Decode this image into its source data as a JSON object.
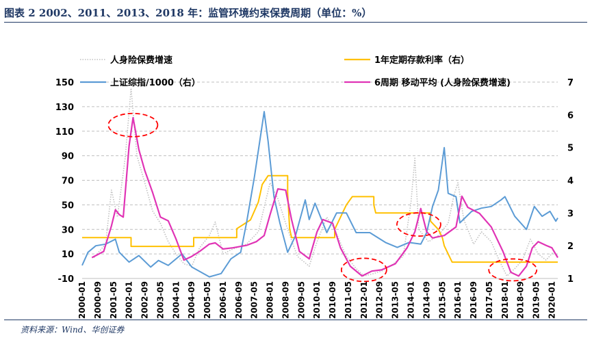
{
  "header": {
    "title": "图表 2   2002、2011、2013、2018 年：监管环境约束保费周期（单位：%）"
  },
  "footer": {
    "source": "资料来源：Wind、华创证券"
  },
  "chart_data": {
    "type": "line",
    "title": "",
    "xlabel": "",
    "ylabel": "",
    "ylim_left": [
      -10,
      150
    ],
    "yticks_left": [
      -10,
      10,
      30,
      50,
      70,
      90,
      110,
      130,
      150
    ],
    "ylim_right": [
      1,
      7
    ],
    "yticks_right": [
      1,
      2,
      3,
      4,
      5,
      6,
      7
    ],
    "x_range": [
      "2000-01",
      "2020-04"
    ],
    "x_tick_labels": [
      "2000-01",
      "2000-09",
      "2001-05",
      "2002-01",
      "2002-09",
      "2003-05",
      "2004-01",
      "2004-09",
      "2005-05",
      "2006-01",
      "2006-09",
      "2007-05",
      "2008-01",
      "2008-09",
      "2009-05",
      "2010-01",
      "2010-09",
      "2011-05",
      "2012-01",
      "2012-09",
      "2013-05",
      "2014-01",
      "2014-09",
      "2015-05",
      "2016-01",
      "2016-09",
      "2017-05",
      "2018-01",
      "2018-09",
      "2019-05",
      "2020-01"
    ],
    "grid": "horizontal-dashed",
    "legend_position": "top",
    "highlight_circles": [
      {
        "center": [
          "2002-03",
          115
        ],
        "series_ref": "spike 2002"
      },
      {
        "center": [
          "2012-01",
          -3
        ],
        "series_ref": "trough 2011-2012"
      },
      {
        "center": [
          "2014-05",
          34
        ],
        "series_ref": "peak 2014"
      },
      {
        "center": [
          "2018-05",
          -3
        ],
        "series_ref": "trough 2018"
      }
    ],
    "series": [
      {
        "name": "人身险保费增速",
        "axis": "left",
        "color": "#c0c0c0",
        "style": "dotted",
        "points": [
          [
            "2000-07",
            7
          ],
          [
            "2001-01",
            18
          ],
          [
            "2001-04",
            62
          ],
          [
            "2001-07",
            40
          ],
          [
            "2001-11",
            88
          ],
          [
            "2002-02",
            145
          ],
          [
            "2002-05",
            90
          ],
          [
            "2002-09",
            68
          ],
          [
            "2003-01",
            45
          ],
          [
            "2003-05",
            35
          ],
          [
            "2003-09",
            20
          ],
          [
            "2004-01",
            10
          ],
          [
            "2004-05",
            2
          ],
          [
            "2004-09",
            0
          ],
          [
            "2005-01",
            15
          ],
          [
            "2005-06",
            25
          ],
          [
            "2005-09",
            36
          ],
          [
            "2006-01",
            10
          ],
          [
            "2006-06",
            14
          ],
          [
            "2007-01",
            18
          ],
          [
            "2007-07",
            28
          ],
          [
            "2008-01",
            68
          ],
          [
            "2008-05",
            55
          ],
          [
            "2008-10",
            30
          ],
          [
            "2009-03",
            8
          ],
          [
            "2009-09",
            0
          ],
          [
            "2010-01",
            20
          ],
          [
            "2010-06",
            40
          ],
          [
            "2010-10",
            30
          ],
          [
            "2011-04",
            8
          ],
          [
            "2011-09",
            -2
          ],
          [
            "2012-01",
            -8
          ],
          [
            "2012-06",
            -6
          ],
          [
            "2012-10",
            -4
          ],
          [
            "2013-04",
            2
          ],
          [
            "2013-09",
            8
          ],
          [
            "2014-01",
            52
          ],
          [
            "2014-03",
            88
          ],
          [
            "2014-05",
            30
          ],
          [
            "2014-10",
            20
          ],
          [
            "2015-03",
            25
          ],
          [
            "2015-08",
            35
          ],
          [
            "2015-11",
            58
          ],
          [
            "2016-01",
            68
          ],
          [
            "2016-04",
            38
          ],
          [
            "2016-09",
            18
          ],
          [
            "2017-01",
            28
          ],
          [
            "2017-06",
            20
          ],
          [
            "2017-10",
            5
          ],
          [
            "2018-02",
            -8
          ],
          [
            "2018-06",
            -2
          ],
          [
            "2018-10",
            5
          ],
          [
            "2019-02",
            22
          ],
          [
            "2019-06",
            10
          ],
          [
            "2019-10",
            5
          ],
          [
            "2020-02",
            12
          ],
          [
            "2020-04",
            8
          ]
        ]
      },
      {
        "name": "1年定期存款利率（右）",
        "axis": "right",
        "color": "#ffc000",
        "style": "solid",
        "points": [
          [
            "2000-01",
            2.25
          ],
          [
            "2002-02",
            2.25
          ],
          [
            "2002-02",
            1.98
          ],
          [
            "2004-10",
            1.98
          ],
          [
            "2004-10",
            2.25
          ],
          [
            "2006-08",
            2.25
          ],
          [
            "2006-08",
            2.52
          ],
          [
            "2007-03",
            2.79
          ],
          [
            "2007-05",
            3.06
          ],
          [
            "2007-07",
            3.33
          ],
          [
            "2007-08",
            3.6
          ],
          [
            "2007-09",
            3.87
          ],
          [
            "2007-12",
            4.14
          ],
          [
            "2008-10",
            4.14
          ],
          [
            "2008-10",
            3.6
          ],
          [
            "2008-11",
            2.52
          ],
          [
            "2008-12",
            2.25
          ],
          [
            "2010-10",
            2.25
          ],
          [
            "2010-10",
            2.5
          ],
          [
            "2010-12",
            2.75
          ],
          [
            "2011-02",
            3.0
          ],
          [
            "2011-04",
            3.25
          ],
          [
            "2011-07",
            3.5
          ],
          [
            "2012-06",
            3.5
          ],
          [
            "2012-06",
            3.25
          ],
          [
            "2012-07",
            3.0
          ],
          [
            "2014-11",
            3.0
          ],
          [
            "2014-11",
            2.75
          ],
          [
            "2015-03",
            2.5
          ],
          [
            "2015-05",
            2.25
          ],
          [
            "2015-06",
            2.0
          ],
          [
            "2015-08",
            1.75
          ],
          [
            "2015-10",
            1.5
          ],
          [
            "2020-04",
            1.5
          ]
        ]
      },
      {
        "name": "上证综指/1000（右）",
        "axis": "right",
        "color": "#5b9bd5",
        "style": "solid",
        "points": [
          [
            "2000-01",
            1.4
          ],
          [
            "2000-04",
            1.8
          ],
          [
            "2000-08",
            2.0
          ],
          [
            "2001-01",
            2.05
          ],
          [
            "2001-06",
            2.2
          ],
          [
            "2001-08",
            1.8
          ],
          [
            "2002-01",
            1.5
          ],
          [
            "2002-06",
            1.7
          ],
          [
            "2002-12",
            1.35
          ],
          [
            "2003-04",
            1.55
          ],
          [
            "2003-09",
            1.4
          ],
          [
            "2004-04",
            1.75
          ],
          [
            "2004-09",
            1.35
          ],
          [
            "2005-06",
            1.05
          ],
          [
            "2005-12",
            1.15
          ],
          [
            "2006-05",
            1.6
          ],
          [
            "2006-10",
            1.8
          ],
          [
            "2007-01",
            2.7
          ],
          [
            "2007-05",
            4.1
          ],
          [
            "2007-08",
            5.3
          ],
          [
            "2007-10",
            6.1
          ],
          [
            "2007-12",
            5.2
          ],
          [
            "2008-03",
            3.5
          ],
          [
            "2008-06",
            2.7
          ],
          [
            "2008-10",
            1.8
          ],
          [
            "2009-02",
            2.3
          ],
          [
            "2009-07",
            3.4
          ],
          [
            "2009-09",
            2.8
          ],
          [
            "2009-12",
            3.3
          ],
          [
            "2010-06",
            2.4
          ],
          [
            "2010-11",
            3.0
          ],
          [
            "2011-04",
            3.0
          ],
          [
            "2011-09",
            2.4
          ],
          [
            "2012-04",
            2.4
          ],
          [
            "2012-12",
            2.1
          ],
          [
            "2013-06",
            1.95
          ],
          [
            "2013-12",
            2.1
          ],
          [
            "2014-06",
            2.05
          ],
          [
            "2014-09",
            2.4
          ],
          [
            "2014-12",
            3.2
          ],
          [
            "2015-03",
            3.7
          ],
          [
            "2015-06",
            5.0
          ],
          [
            "2015-08",
            3.6
          ],
          [
            "2015-12",
            3.5
          ],
          [
            "2016-02",
            2.7
          ],
          [
            "2016-08",
            3.05
          ],
          [
            "2017-01",
            3.15
          ],
          [
            "2017-06",
            3.2
          ],
          [
            "2017-11",
            3.4
          ],
          [
            "2018-01",
            3.5
          ],
          [
            "2018-06",
            2.9
          ],
          [
            "2018-12",
            2.5
          ],
          [
            "2019-04",
            3.2
          ],
          [
            "2019-08",
            2.9
          ],
          [
            "2019-12",
            3.05
          ],
          [
            "2020-03",
            2.75
          ],
          [
            "2020-04",
            2.85
          ]
        ]
      },
      {
        "name": "6周期 移动平均 (人身险保费增速)",
        "axis": "left",
        "color": "#e033b5",
        "style": "solid",
        "points": [
          [
            "2000-06",
            7
          ],
          [
            "2000-12",
            12
          ],
          [
            "2001-04",
            33
          ],
          [
            "2001-06",
            46
          ],
          [
            "2001-08",
            42
          ],
          [
            "2001-10",
            40
          ],
          [
            "2002-01",
            98
          ],
          [
            "2002-03",
            121
          ],
          [
            "2002-06",
            95
          ],
          [
            "2002-09",
            78
          ],
          [
            "2003-01",
            60
          ],
          [
            "2003-05",
            40
          ],
          [
            "2003-09",
            37
          ],
          [
            "2004-01",
            22
          ],
          [
            "2004-05",
            5
          ],
          [
            "2004-09",
            8
          ],
          [
            "2005-01",
            12
          ],
          [
            "2005-06",
            18
          ],
          [
            "2005-09",
            19
          ],
          [
            "2006-01",
            14
          ],
          [
            "2006-06",
            15
          ],
          [
            "2007-01",
            17
          ],
          [
            "2007-06",
            20
          ],
          [
            "2007-10",
            25
          ],
          [
            "2008-01",
            42
          ],
          [
            "2008-05",
            63
          ],
          [
            "2008-09",
            62
          ],
          [
            "2008-12",
            38
          ],
          [
            "2009-04",
            12
          ],
          [
            "2009-09",
            6
          ],
          [
            "2010-01",
            28
          ],
          [
            "2010-04",
            38
          ],
          [
            "2010-09",
            35
          ],
          [
            "2011-01",
            15
          ],
          [
            "2011-06",
            0
          ],
          [
            "2011-12",
            -8
          ],
          [
            "2012-05",
            -4
          ],
          [
            "2012-10",
            -3
          ],
          [
            "2013-05",
            2
          ],
          [
            "2013-11",
            15
          ],
          [
            "2014-03",
            28
          ],
          [
            "2014-06",
            47
          ],
          [
            "2014-09",
            28
          ],
          [
            "2014-12",
            23
          ],
          [
            "2015-06",
            25
          ],
          [
            "2015-12",
            32
          ],
          [
            "2016-03",
            57
          ],
          [
            "2016-06",
            48
          ],
          [
            "2016-12",
            43
          ],
          [
            "2017-06",
            32
          ],
          [
            "2017-12",
            12
          ],
          [
            "2018-04",
            -5
          ],
          [
            "2018-08",
            -8
          ],
          [
            "2018-12",
            0
          ],
          [
            "2019-03",
            15
          ],
          [
            "2019-06",
            20
          ],
          [
            "2019-10",
            17
          ],
          [
            "2020-01",
            15
          ],
          [
            "2020-04",
            7
          ]
        ]
      }
    ]
  }
}
